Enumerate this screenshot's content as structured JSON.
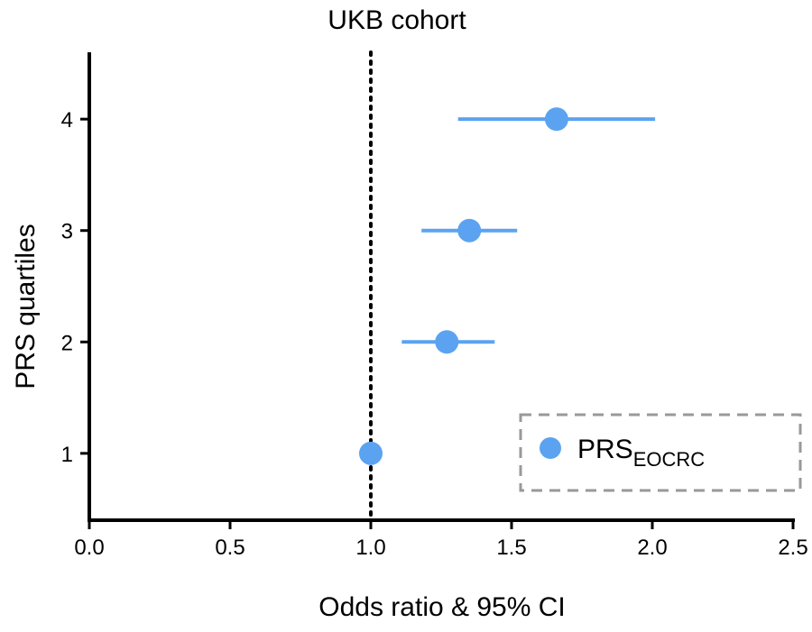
{
  "chart_data": {
    "type": "scatter",
    "title": "UKB cohort",
    "xlabel": "Odds ratio & 95% CI",
    "ylabel": "PRS quartiles",
    "xlim": [
      0.0,
      2.5
    ],
    "ylim": [
      0.4,
      4.6
    ],
    "x_ticks": [
      "0.0",
      "0.5",
      "1.0",
      "1.5",
      "2.0",
      "2.5"
    ],
    "y_ticks": [
      "1",
      "2",
      "3",
      "4"
    ],
    "reference_line": {
      "x": 1.0,
      "style": "dotted"
    },
    "grid": false,
    "legend_position": "bottom-right",
    "series": [
      {
        "name": "PRS",
        "name_subscript": "EOCRC",
        "color": "#5ba3f0",
        "points": [
          {
            "quartile": 1,
            "or": 1.0,
            "ci_low": 1.0,
            "ci_high": 1.0
          },
          {
            "quartile": 2,
            "or": 1.27,
            "ci_low": 1.11,
            "ci_high": 1.44
          },
          {
            "quartile": 3,
            "or": 1.35,
            "ci_low": 1.18,
            "ci_high": 1.52
          },
          {
            "quartile": 4,
            "or": 1.66,
            "ci_low": 1.31,
            "ci_high": 2.01
          }
        ]
      }
    ]
  }
}
